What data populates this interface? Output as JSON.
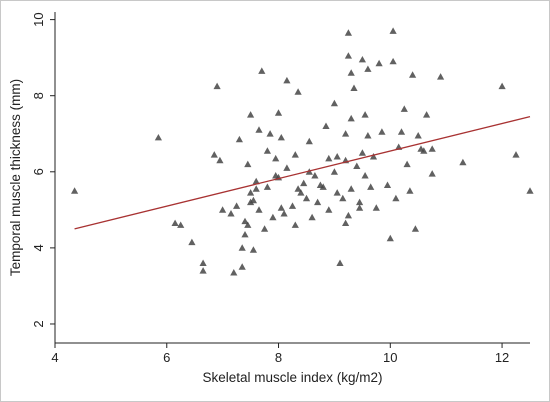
{
  "chart_data": {
    "type": "scatter",
    "xlabel": "Skeletal muscle index (kg/m2)",
    "ylabel": "Temporal muscle thickness (mm)",
    "xlim": [
      4,
      12.5
    ],
    "ylim": [
      1.5,
      10.2
    ],
    "x_ticks": [
      "4",
      "6",
      "8",
      "10",
      "12"
    ],
    "y_ticks": [
      "2",
      "4",
      "6",
      "8",
      "10"
    ],
    "grid": false,
    "legend": "none",
    "colors": {
      "marker": "#454545",
      "fit_line": "#a83232",
      "axis": "#222222"
    },
    "fit_line": {
      "x": [
        4.35,
        12.5
      ],
      "y": [
        4.5,
        7.45
      ]
    },
    "points": [
      [
        4.35,
        5.5
      ],
      [
        5.85,
        6.9
      ],
      [
        6.15,
        4.65
      ],
      [
        6.25,
        4.6
      ],
      [
        6.45,
        4.15
      ],
      [
        6.65,
        3.6
      ],
      [
        6.65,
        3.4
      ],
      [
        6.85,
        6.45
      ],
      [
        6.9,
        8.25
      ],
      [
        6.95,
        6.3
      ],
      [
        7.0,
        5.0
      ],
      [
        7.15,
        4.9
      ],
      [
        7.2,
        3.35
      ],
      [
        7.25,
        5.1
      ],
      [
        7.3,
        6.85
      ],
      [
        7.35,
        3.5
      ],
      [
        7.35,
        4.0
      ],
      [
        7.4,
        4.35
      ],
      [
        7.4,
        4.7
      ],
      [
        7.45,
        4.6
      ],
      [
        7.45,
        6.2
      ],
      [
        7.5,
        5.2
      ],
      [
        7.5,
        5.45
      ],
      [
        7.5,
        7.5
      ],
      [
        7.55,
        3.95
      ],
      [
        7.55,
        5.25
      ],
      [
        7.6,
        5.55
      ],
      [
        7.6,
        5.75
      ],
      [
        7.65,
        5.0
      ],
      [
        7.65,
        7.1
      ],
      [
        7.7,
        8.65
      ],
      [
        7.75,
        4.5
      ],
      [
        7.8,
        5.6
      ],
      [
        7.8,
        6.55
      ],
      [
        7.85,
        7.0
      ],
      [
        7.9,
        4.8
      ],
      [
        7.95,
        5.9
      ],
      [
        7.95,
        6.35
      ],
      [
        8.0,
        5.85
      ],
      [
        8.0,
        7.55
      ],
      [
        8.05,
        5.05
      ],
      [
        8.05,
        6.9
      ],
      [
        8.1,
        4.9
      ],
      [
        8.15,
        8.4
      ],
      [
        8.15,
        6.1
      ],
      [
        8.25,
        5.1
      ],
      [
        8.3,
        6.45
      ],
      [
        8.3,
        4.6
      ],
      [
        8.35,
        5.55
      ],
      [
        8.35,
        8.1
      ],
      [
        8.4,
        5.45
      ],
      [
        8.45,
        5.7
      ],
      [
        8.5,
        5.3
      ],
      [
        8.55,
        6.0
      ],
      [
        8.55,
        6.8
      ],
      [
        8.6,
        4.8
      ],
      [
        8.65,
        5.9
      ],
      [
        8.7,
        5.2
      ],
      [
        8.75,
        5.65
      ],
      [
        8.8,
        5.6
      ],
      [
        8.85,
        7.2
      ],
      [
        8.9,
        6.35
      ],
      [
        8.9,
        5.0
      ],
      [
        9.0,
        6.0
      ],
      [
        9.0,
        7.8
      ],
      [
        9.05,
        5.45
      ],
      [
        9.05,
        6.4
      ],
      [
        9.1,
        3.6
      ],
      [
        9.15,
        5.3
      ],
      [
        9.2,
        6.3
      ],
      [
        9.2,
        7.0
      ],
      [
        9.2,
        4.65
      ],
      [
        9.25,
        4.85
      ],
      [
        9.25,
        9.05
      ],
      [
        9.25,
        9.65
      ],
      [
        9.3,
        8.6
      ],
      [
        9.3,
        7.4
      ],
      [
        9.3,
        5.55
      ],
      [
        9.35,
        8.2
      ],
      [
        9.4,
        6.15
      ],
      [
        9.45,
        5.05
      ],
      [
        9.45,
        5.2
      ],
      [
        9.5,
        8.95
      ],
      [
        9.5,
        6.5
      ],
      [
        9.55,
        5.9
      ],
      [
        9.55,
        7.5
      ],
      [
        9.6,
        8.7
      ],
      [
        9.6,
        6.95
      ],
      [
        9.65,
        5.6
      ],
      [
        9.7,
        6.4
      ],
      [
        9.75,
        5.05
      ],
      [
        9.8,
        8.85
      ],
      [
        9.85,
        7.05
      ],
      [
        9.95,
        5.65
      ],
      [
        10.0,
        4.25
      ],
      [
        10.05,
        9.7
      ],
      [
        10.05,
        8.9
      ],
      [
        10.1,
        5.3
      ],
      [
        10.15,
        6.65
      ],
      [
        10.2,
        7.05
      ],
      [
        10.25,
        7.65
      ],
      [
        10.3,
        6.2
      ],
      [
        10.35,
        5.5
      ],
      [
        10.4,
        8.55
      ],
      [
        10.45,
        4.5
      ],
      [
        10.5,
        6.95
      ],
      [
        10.55,
        6.6
      ],
      [
        10.6,
        6.55
      ],
      [
        10.65,
        7.5
      ],
      [
        10.75,
        5.95
      ],
      [
        10.75,
        6.6
      ],
      [
        10.9,
        8.5
      ],
      [
        11.3,
        6.25
      ],
      [
        12.0,
        8.25
      ],
      [
        12.25,
        6.45
      ],
      [
        12.5,
        5.5
      ]
    ]
  }
}
